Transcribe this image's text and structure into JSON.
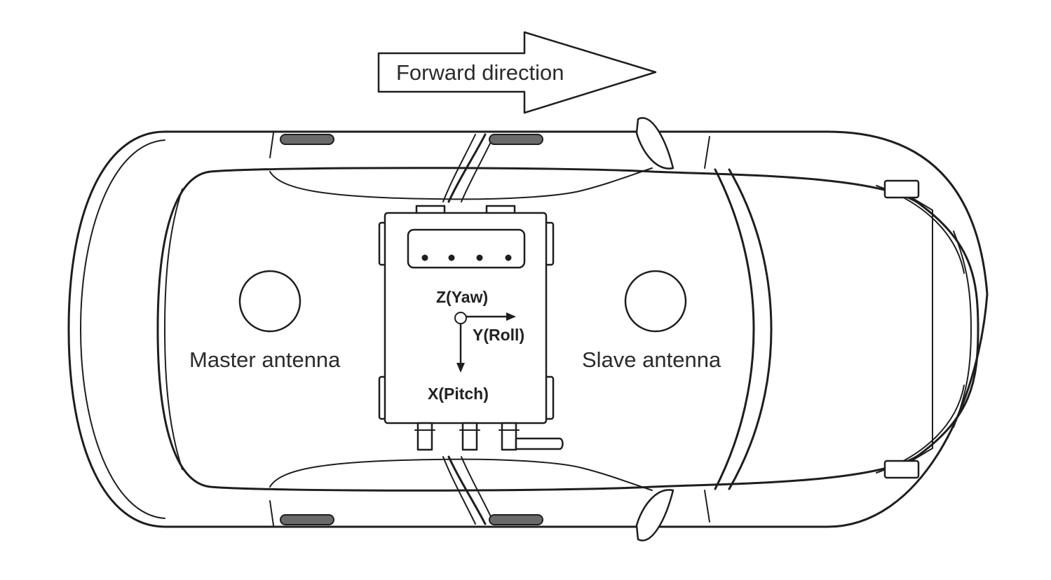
{
  "labels": {
    "forward_direction": "Forward direction",
    "master_antenna": "Master antenna",
    "slave_antenna": "Slave antenna",
    "z_axis": "Z(Yaw)",
    "y_axis": "Y(Roll)",
    "x_axis": "X(Pitch)"
  }
}
